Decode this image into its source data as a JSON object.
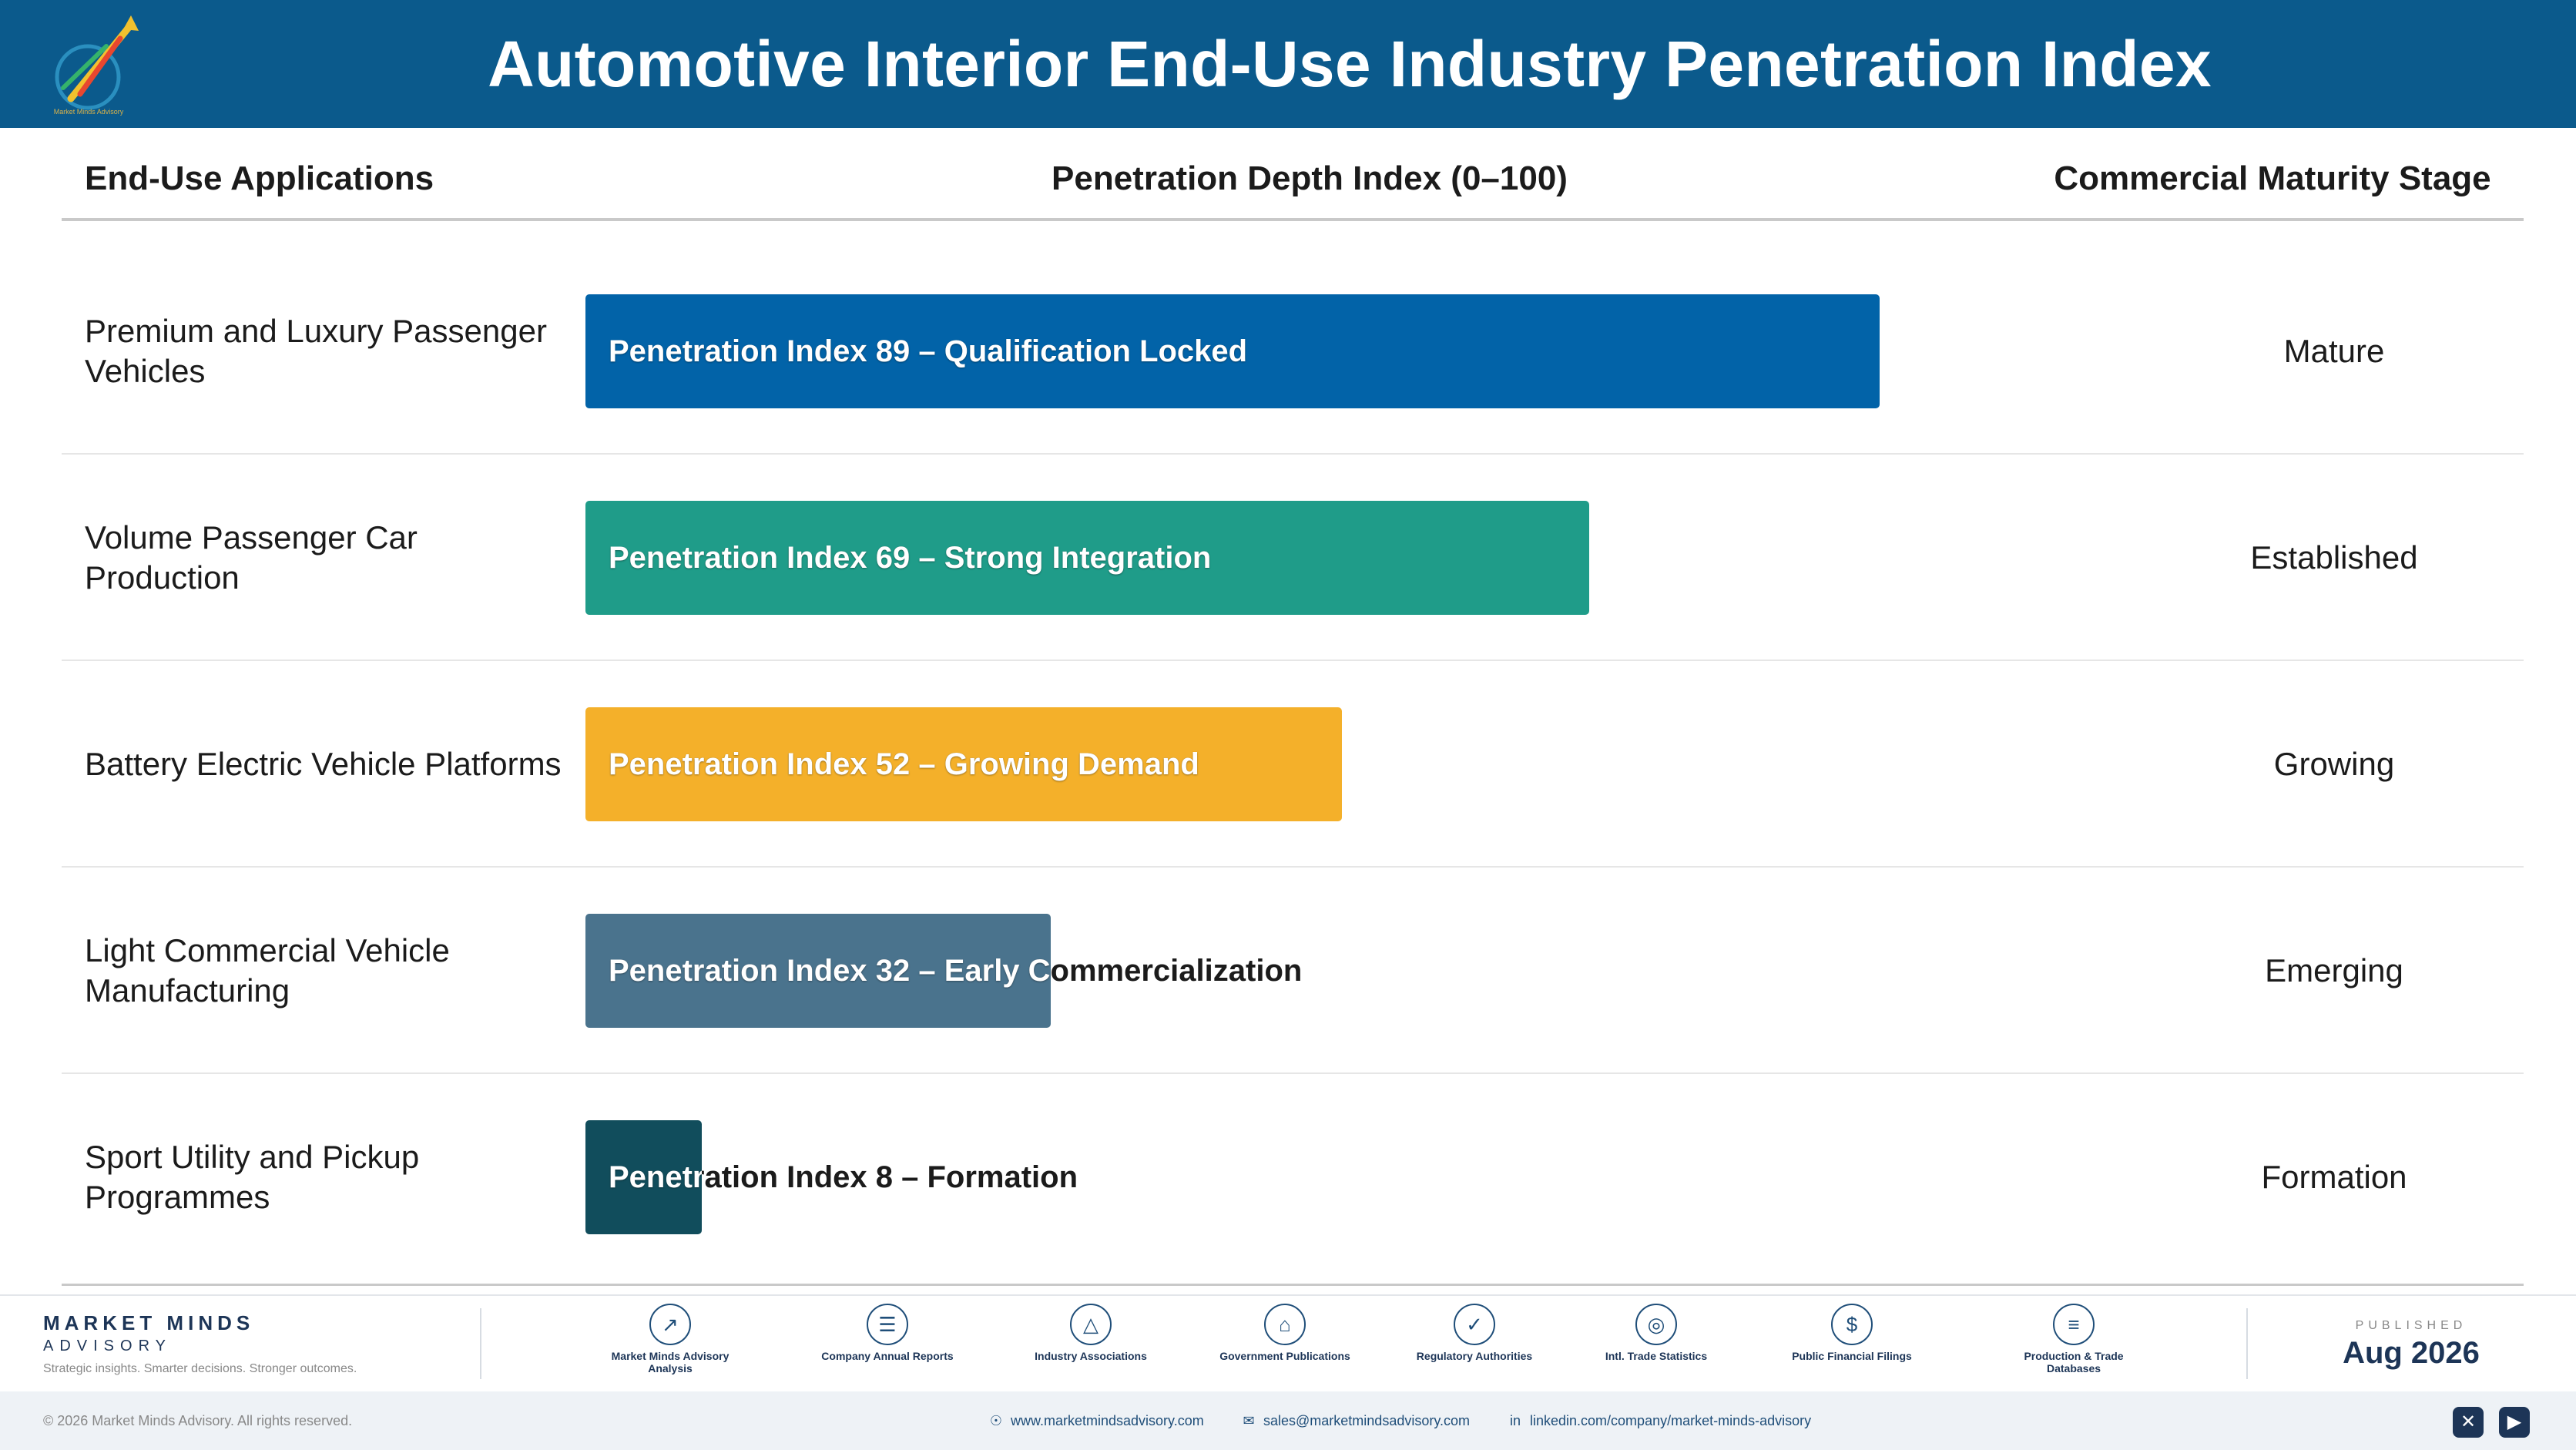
{
  "header": {
    "title": "Automotive Interior End-Use Industry Penetration Index",
    "logo_text": "Market Minds Advisory"
  },
  "columns": {
    "applications": "End-Use Applications",
    "index": "Penetration Depth Index (0–100)",
    "stage": "Commercial Maturity Stage"
  },
  "chart_data": {
    "type": "bar",
    "orientation": "horizontal",
    "title": "Automotive Interior End-Use Industry Penetration Index",
    "xlim": [
      0,
      100
    ],
    "categories": [
      "Premium and Luxury Passenger Vehicles",
      "Volume Passenger Car Production",
      "Battery Electric Vehicle Platforms",
      "Light Commercial Vehicle Manufacturing",
      "Sport Utility and Pickup Programmes"
    ],
    "values": [
      89,
      69,
      52,
      32,
      8
    ],
    "bar_labels": [
      "Penetration Index 89 – Qualification Locked",
      "Penetration Index 69 – Strong Integration",
      "Penetration Index 52 – Growing Demand",
      "Penetration Index 32 – Early Commercialization",
      "Penetration Index 8 – Formation"
    ],
    "stages": [
      "Mature",
      "Established",
      "Growing",
      "Emerging",
      "Formation"
    ],
    "colors": [
      "#0263a8",
      "#1f9c89",
      "#f4b02a",
      "#4a738d",
      "#114d5c"
    ],
    "grid": false,
    "legend": "none"
  },
  "footer": {
    "brand_name": "MARKET MINDS",
    "brand_sub": "ADVISORY",
    "tagline": "Strategic insights. Smarter decisions. Stronger outcomes.",
    "sources": [
      {
        "label": "Market Minds Advisory Analysis",
        "icon": "chart-line-icon"
      },
      {
        "label": "Company Annual Reports",
        "icon": "document-icon"
      },
      {
        "label": "Industry Associations",
        "icon": "network-icon"
      },
      {
        "label": "Government Publications",
        "icon": "government-building-icon"
      },
      {
        "label": "Regulatory Authorities",
        "icon": "shield-check-icon"
      },
      {
        "label": "Intl. Trade Statistics",
        "icon": "globe-icon"
      },
      {
        "label": "Public Financial Filings",
        "icon": "dollar-coin-icon"
      },
      {
        "label": "Production & Trade Databases",
        "icon": "database-icon"
      }
    ],
    "published_label": "PUBLISHED",
    "published_date": "Aug 2026",
    "copyright": "© 2026 Market Minds Advisory. All rights reserved.",
    "website": "www.marketmindsadvisory.com",
    "email": "sales@marketmindsadvisory.com",
    "linkedin": "linkedin.com/company/market-minds-advisory"
  }
}
